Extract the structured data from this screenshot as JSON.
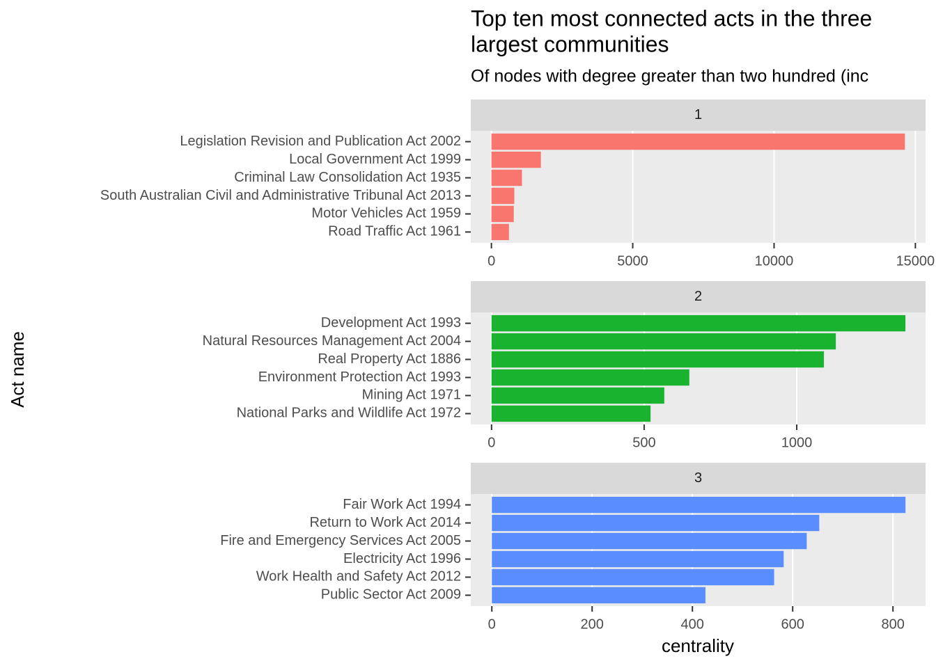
{
  "title": [
    "Top ten most connected acts in the three",
    "largest communities"
  ],
  "subtitle": "Of nodes with degree greater than two hundred (inc",
  "x_label": "centrality",
  "y_label": "Act name",
  "chart_data": [
    {
      "type": "bar",
      "horizontal": true,
      "facet": "1",
      "color": "#f8766d",
      "categories": [
        "Legislation Revision and Publication Act 2002",
        "Local Government Act 1999",
        "Criminal Law Consolidation Act 1935",
        "South Australian Civil and Administrative Tribunal Act 2013",
        "Motor Vehicles Act 1959",
        "Road Traffic Act 1961"
      ],
      "values": [
        14630,
        1750,
        1080,
        810,
        790,
        620
      ],
      "xlim": [
        -730,
        15360
      ],
      "xticks": [
        0,
        5000,
        10000,
        15000
      ],
      "grid": true
    },
    {
      "type": "bar",
      "horizontal": true,
      "facet": "2",
      "color": "#19b32f",
      "categories": [
        "Development Act 1993",
        "Natural Resources Management Act 2004",
        "Real Property Act 1886",
        "Environment Protection Act 1993",
        "Mining Act 1971",
        "National Parks and Wildlife Act 1972"
      ],
      "values": [
        1356,
        1128,
        1089,
        648,
        566,
        521
      ],
      "xlim": [
        -68,
        1422
      ],
      "xticks": [
        0,
        500,
        1000
      ],
      "grid": true
    },
    {
      "type": "bar",
      "horizontal": true,
      "facet": "3",
      "color": "#5a8dff",
      "categories": [
        "Fair Work Act 1994",
        "Return to Work Act 2014",
        "Fire and Emergency Services Act 2005",
        "Electricity Act 1996",
        "Work Health and Safety Act 2012",
        "Public Sector Act 2009"
      ],
      "values": [
        825,
        653,
        628,
        582,
        563,
        426
      ],
      "xlim": [
        -42,
        865
      ],
      "xticks": [
        0,
        200,
        400,
        600,
        800
      ],
      "grid": true
    }
  ]
}
